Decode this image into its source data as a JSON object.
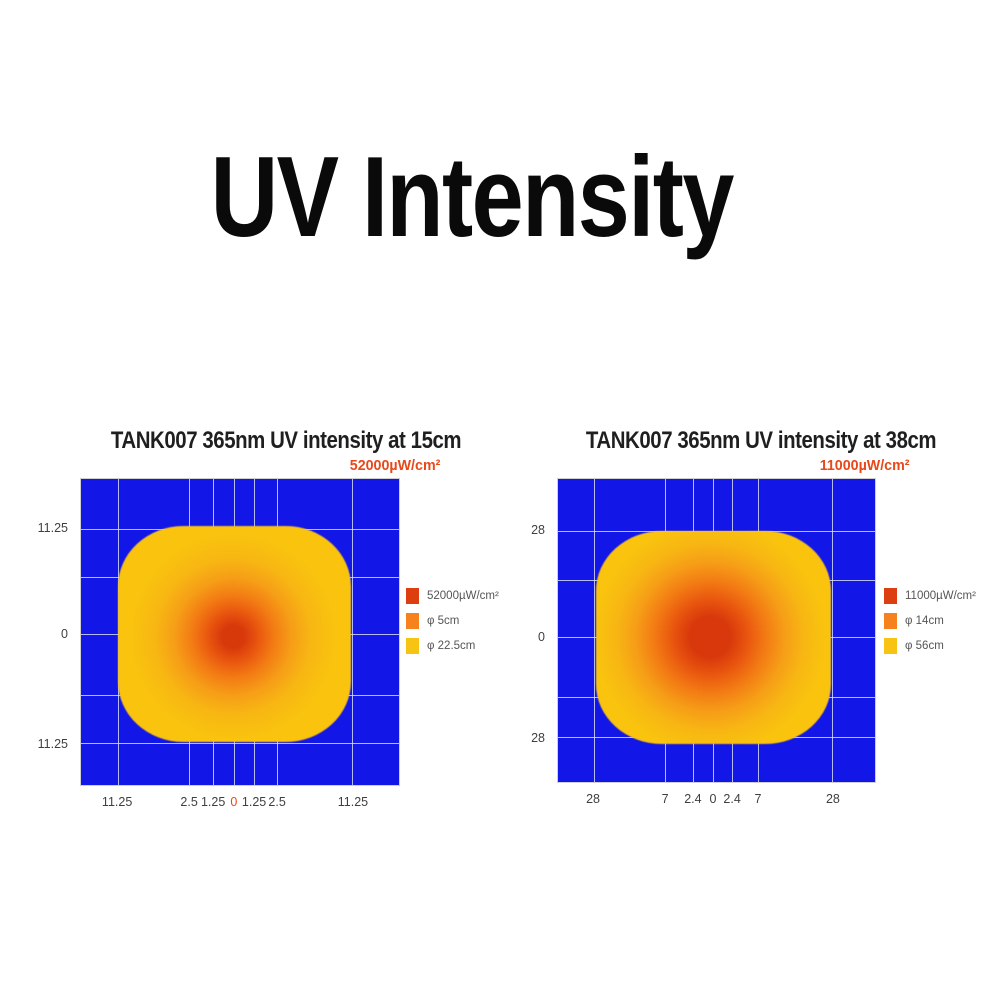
{
  "main_title": "UV Intensity",
  "colors": {
    "background": "#ffffff",
    "plot_blue": "#1216e6",
    "grid_line": "#dfe4ff",
    "headline_text": "#0a0a0a",
    "chart_title_text": "#1f1f1f",
    "subtitle_orange": "#e8481a",
    "axis_text": "#3f3f3f",
    "legend_text": "#555555",
    "zero_tick_red": "#e8481a",
    "blob_core_red": "#d8390b",
    "blob_mid_orange": "#f37c14",
    "blob_outer_yellow": "#f9c30e"
  },
  "chart_data": [
    {
      "type": "heatmap",
      "title": "TANK007 365nm UV intensity at 15cm",
      "subtitle": "52000µW/cm²",
      "peak_intensity": "52000µW/cm²",
      "distance": "15cm",
      "grid": {
        "v_lines": [
          0.116,
          0.341,
          0.416,
          0.481,
          0.544,
          0.616,
          0.853
        ],
        "h_lines": [
          0.163,
          0.319,
          0.505,
          0.707,
          0.863
        ]
      },
      "x_ticks": [
        {
          "label": "11.25",
          "pos": 0.116
        },
        {
          "label": "2.5",
          "pos": 0.341
        },
        {
          "label": "1.25",
          "pos": 0.416
        },
        {
          "label": "0",
          "pos": 0.481,
          "highlight": true
        },
        {
          "label": "1.25",
          "pos": 0.544
        },
        {
          "label": "2.5",
          "pos": 0.616
        },
        {
          "label": "11.25",
          "pos": 0.853
        }
      ],
      "y_ticks": [
        {
          "label": "11.25",
          "pos": 0.163
        },
        {
          "label": "0",
          "pos": 0.505
        },
        {
          "label": "11.25",
          "pos": 0.863
        }
      ],
      "legend": [
        {
          "color": "#dd3e10",
          "label": "52000µW/cm²"
        },
        {
          "color": "#f6821e",
          "label": "φ 5cm"
        },
        {
          "color": "#f8c413",
          "label": "φ 22.5cm"
        }
      ],
      "blob": {
        "left": 0.1156,
        "top": 0.153,
        "width": 0.734,
        "height": 0.707,
        "center_x": 0.494,
        "center_y": 0.512,
        "gradient_radius_px": 125,
        "stops": [
          {
            "color": "#d8390b",
            "pos": 0
          },
          {
            "color": "#d8390b",
            "pos": 9
          },
          {
            "color": "#e9560f",
            "pos": 20
          },
          {
            "color": "#f37c14",
            "pos": 33
          },
          {
            "color": "#f69e17",
            "pos": 47
          },
          {
            "color": "#f8b713",
            "pos": 63
          },
          {
            "color": "#f9c30e",
            "pos": 82
          },
          {
            "color": "#f9c30e",
            "pos": 100
          }
        ]
      }
    },
    {
      "type": "heatmap",
      "title": "TANK007 365nm UV intensity at 38cm",
      "subtitle": "11000µW/cm²",
      "peak_intensity": "11000µW/cm²",
      "distance": "38cm",
      "grid": {
        "v_lines": [
          0.113,
          0.339,
          0.426,
          0.489,
          0.549,
          0.63,
          0.865
        ],
        "h_lines": [
          0.17,
          0.334,
          0.521,
          0.718,
          0.852
        ]
      },
      "x_ticks": [
        {
          "label": "28",
          "pos": 0.113
        },
        {
          "label": "7",
          "pos": 0.339
        },
        {
          "label": "2.4",
          "pos": 0.426
        },
        {
          "label": "0",
          "pos": 0.489
        },
        {
          "label": "2.4",
          "pos": 0.549
        },
        {
          "label": "7",
          "pos": 0.63
        },
        {
          "label": "28",
          "pos": 0.865
        }
      ],
      "y_ticks": [
        {
          "label": "28",
          "pos": 0.17
        },
        {
          "label": "0",
          "pos": 0.521
        },
        {
          "label": "28",
          "pos": 0.852
        }
      ],
      "legend": [
        {
          "color": "#dd3e10",
          "label": "11000µW/cm²"
        },
        {
          "color": "#f6821e",
          "label": "φ 14cm"
        },
        {
          "color": "#f8c413",
          "label": "φ 56cm"
        }
      ],
      "blob": {
        "left": 0.119,
        "top": 0.17,
        "width": 0.743,
        "height": 0.705,
        "center_x": 0.485,
        "center_y": 0.498,
        "gradient_radius_px": 125,
        "stops": [
          {
            "color": "#d8380b",
            "pos": 0
          },
          {
            "color": "#d8380b",
            "pos": 16
          },
          {
            "color": "#e9560f",
            "pos": 30
          },
          {
            "color": "#f37c14",
            "pos": 45
          },
          {
            "color": "#f69e17",
            "pos": 60
          },
          {
            "color": "#f8b713",
            "pos": 76
          },
          {
            "color": "#f9c30e",
            "pos": 92
          },
          {
            "color": "#f9c30e",
            "pos": 100
          }
        ]
      }
    }
  ]
}
